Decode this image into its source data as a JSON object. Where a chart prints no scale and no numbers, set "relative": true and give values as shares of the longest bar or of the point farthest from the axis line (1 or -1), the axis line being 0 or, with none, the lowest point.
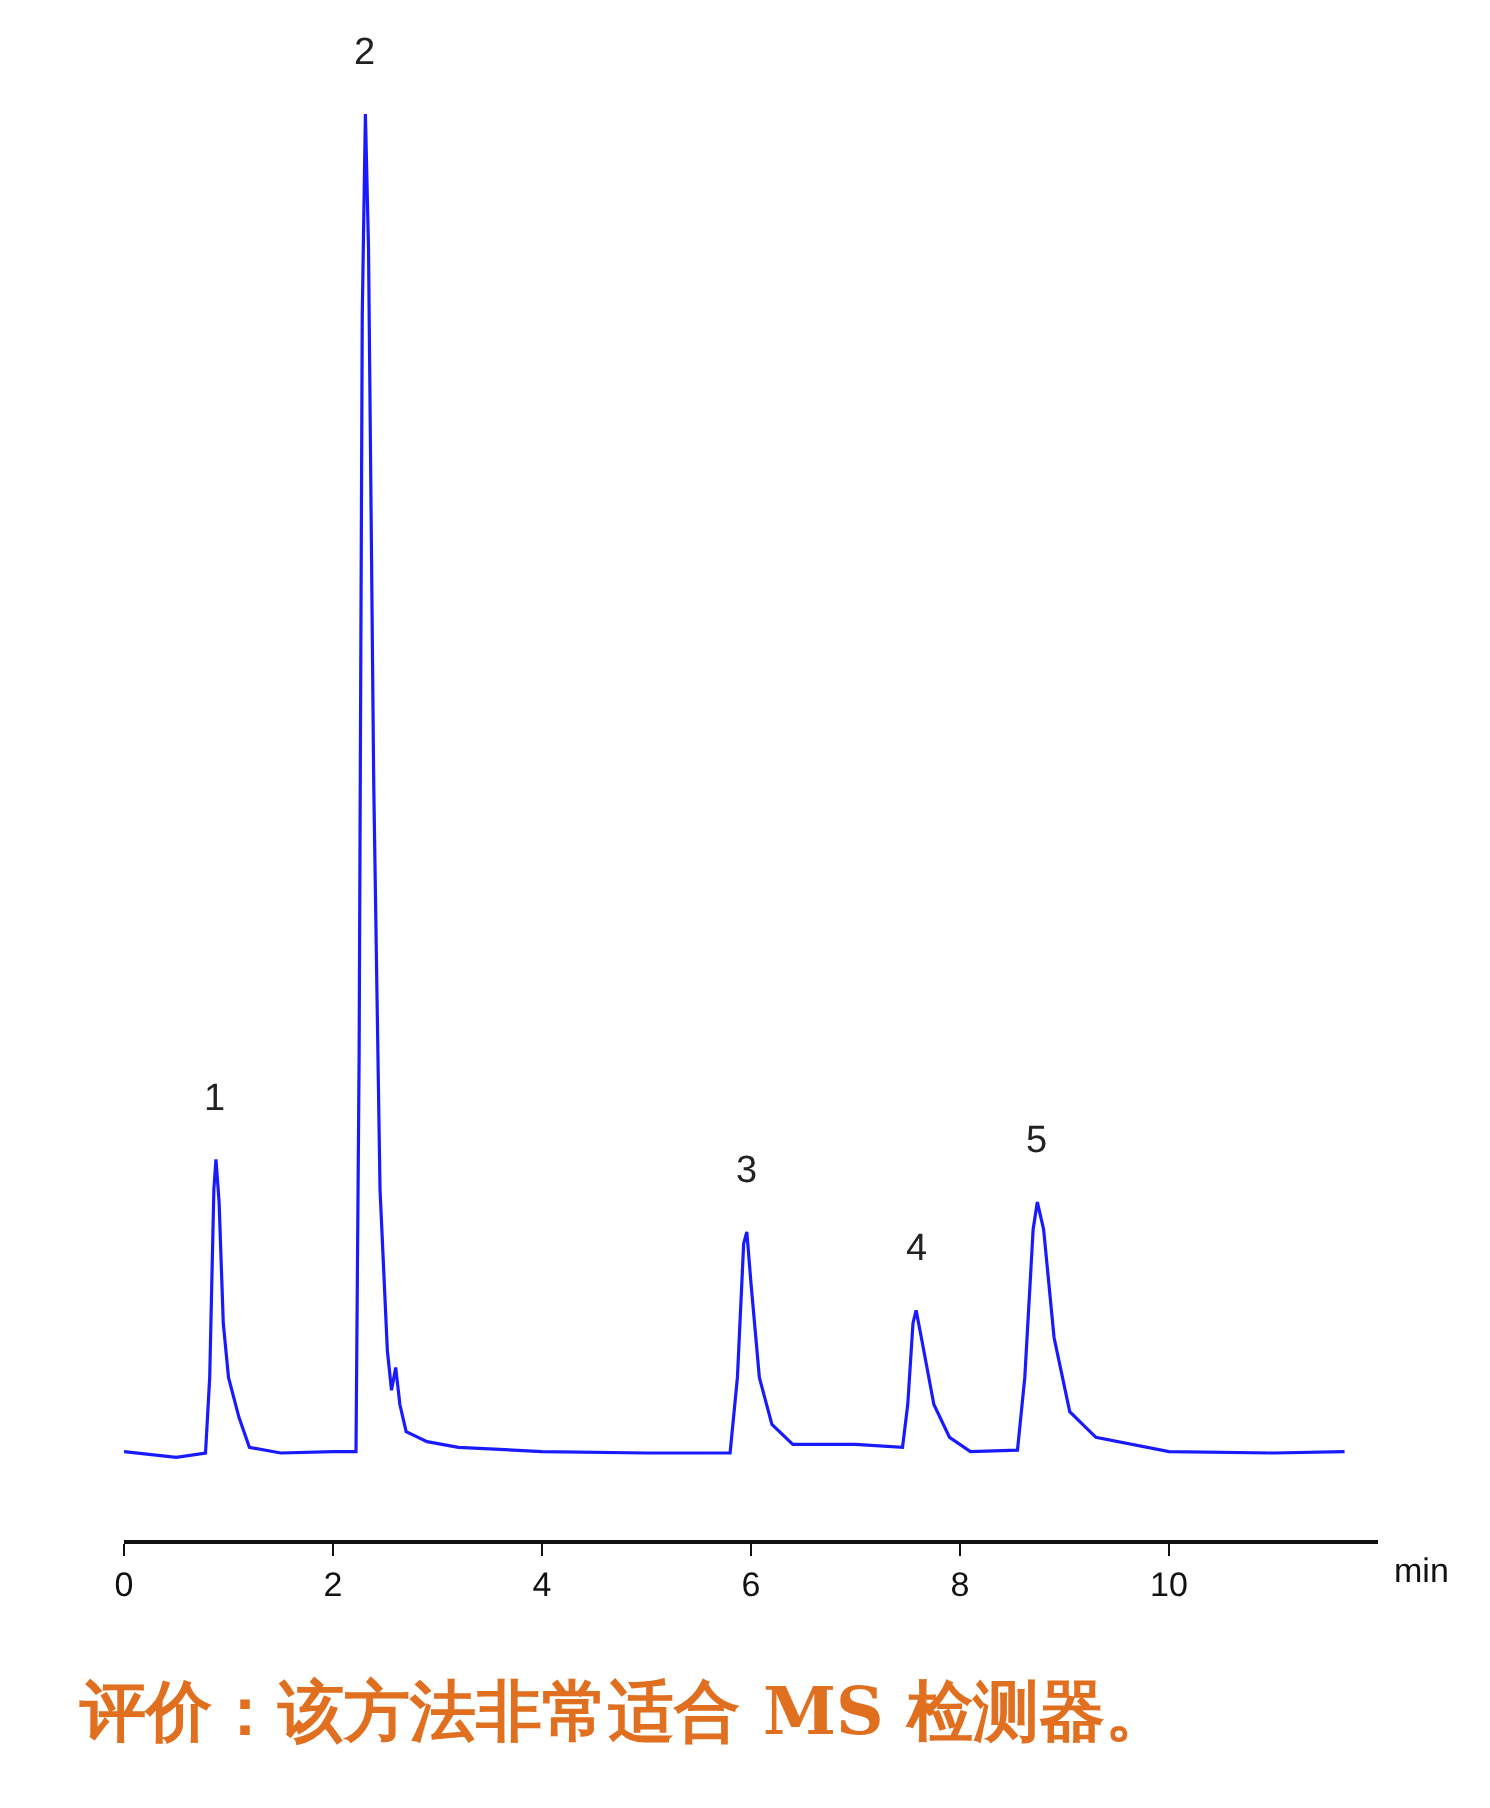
{
  "chart_data": {
    "type": "line",
    "relative": true,
    "xlabel": "min",
    "xlim": [
      0,
      12
    ],
    "xticks": [
      0,
      2,
      4,
      6,
      8,
      10
    ],
    "grid": false,
    "marker": "none",
    "line_style": "solid",
    "x": [
      0,
      0.5,
      0.78,
      0.82,
      0.86,
      0.88,
      0.91,
      0.95,
      1.0,
      1.1,
      1.2,
      1.5,
      2.0,
      2.22,
      2.25,
      2.28,
      2.31,
      2.34,
      2.39,
      2.45,
      2.52,
      2.56,
      2.6,
      2.64,
      2.7,
      2.9,
      3.2,
      4,
      5,
      5.8,
      5.87,
      5.93,
      5.96,
      6.0,
      6.08,
      6.2,
      6.4,
      7,
      7.45,
      7.5,
      7.55,
      7.58,
      7.63,
      7.75,
      7.9,
      8.1,
      8.55,
      8.62,
      8.7,
      8.74,
      8.8,
      8.9,
      9.05,
      9.3,
      10,
      11,
      11.68
    ],
    "series": [
      {
        "color": "#1a1aff",
        "values": [
          0.062,
          0.058,
          0.061,
          0.114,
          0.246,
          0.267,
          0.237,
          0.152,
          0.114,
          0.086,
          0.065,
          0.061,
          0.062,
          0.062,
          0.34,
          0.859,
          1,
          0.906,
          0.529,
          0.246,
          0.133,
          0.105,
          0.121,
          0.095,
          0.076,
          0.069,
          0.065,
          0.062,
          0.061,
          0.061,
          0.114,
          0.208,
          0.216,
          0.18,
          0.114,
          0.081,
          0.067,
          0.067,
          0.065,
          0.095,
          0.152,
          0.161,
          0.142,
          0.095,
          0.072,
          0.062,
          0.063,
          0.114,
          0.218,
          0.237,
          0.218,
          0.142,
          0.09,
          0.072,
          0.062,
          0.061,
          0.062
        ]
      }
    ],
    "annotations": [
      {
        "text": "1",
        "x": 0.88,
        "y": 0.267
      },
      {
        "text": "2",
        "x": 2.31,
        "y": 1
      },
      {
        "text": "3",
        "x": 5.96,
        "y": 0.216
      },
      {
        "text": "4",
        "x": 7.58,
        "y": 0.161
      },
      {
        "text": "5",
        "x": 8.74,
        "y": 0.237
      },
      "评价：该方法非常适合 MS 检测器。"
    ]
  }
}
